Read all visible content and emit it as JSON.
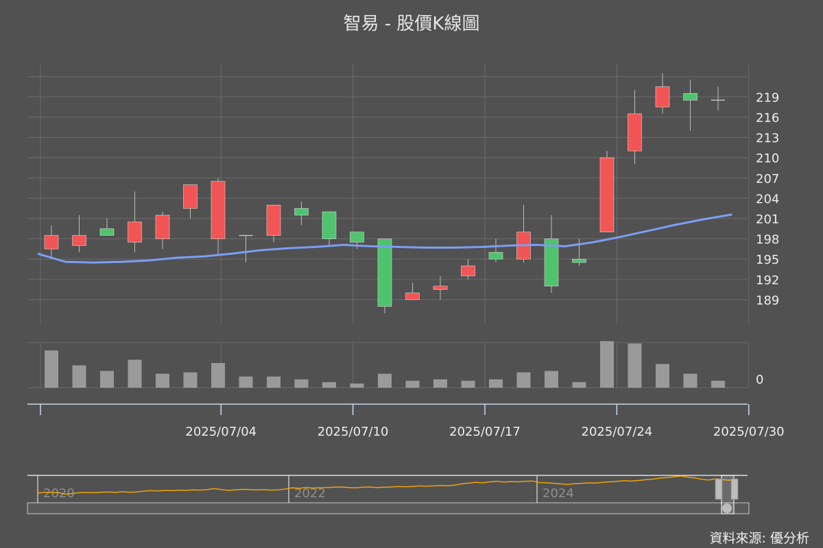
{
  "chart_data": {
    "type": "candlestick",
    "title": "智易 - 股價K線圖",
    "source": "資料來源: 優分析",
    "colors": {
      "background": "#515151",
      "up": "#f25555",
      "down": "#4fc36e",
      "ma": "#7b9ff5",
      "volume": "#9a9a9a",
      "navigator": "#f0a30a"
    },
    "price_axis": {
      "ticks": [
        189,
        192,
        195,
        198,
        201,
        204,
        207,
        210,
        213,
        216,
        219
      ]
    },
    "volume_axis": {
      "ticks": [
        0
      ]
    },
    "x_ticks": [
      {
        "index": 0,
        "label": ""
      },
      {
        "index": 6.5,
        "label": "2025/07/04"
      },
      {
        "index": 11.25,
        "label": "2025/07/10"
      },
      {
        "index": 16,
        "label": "2025/07/17"
      },
      {
        "index": 20.75,
        "label": "2025/07/24"
      },
      {
        "index": 25.5,
        "label": "2025/07/30"
      }
    ],
    "candles": [
      {
        "open": 196.5,
        "close": 198.5,
        "high": 200.0,
        "low": 195.0
      },
      {
        "open": 197.0,
        "close": 198.5,
        "high": 201.5,
        "low": 196.0
      },
      {
        "open": 199.5,
        "close": 198.5,
        "high": 201.0,
        "low": 198.5
      },
      {
        "open": 197.5,
        "close": 200.5,
        "high": 205.0,
        "low": 196.0
      },
      {
        "open": 198.0,
        "close": 201.5,
        "high": 202.0,
        "low": 196.5
      },
      {
        "open": 202.5,
        "close": 206.0,
        "high": 206.0,
        "low": 201.0
      },
      {
        "open": 198.0,
        "close": 206.5,
        "high": 207.0,
        "low": 195.5
      },
      {
        "open": 198.5,
        "close": 198.5,
        "high": 198.5,
        "low": 194.5
      },
      {
        "open": 198.5,
        "close": 203.0,
        "high": 203.0,
        "low": 197.5
      },
      {
        "open": 202.5,
        "close": 201.5,
        "high": 203.5,
        "low": 200.0
      },
      {
        "open": 202.0,
        "close": 198.0,
        "high": 202.0,
        "low": 197.0
      },
      {
        "open": 199.0,
        "close": 197.5,
        "high": 199.0,
        "low": 196.5
      },
      {
        "open": 198.0,
        "close": 188.0,
        "high": 198.0,
        "low": 187.0
      },
      {
        "open": 189.0,
        "close": 190.0,
        "high": 191.5,
        "low": 189.0
      },
      {
        "open": 190.5,
        "close": 191.0,
        "high": 192.5,
        "low": 189.0
      },
      {
        "open": 192.5,
        "close": 194.0,
        "high": 195.0,
        "low": 192.0
      },
      {
        "open": 196.0,
        "close": 195.0,
        "high": 198.0,
        "low": 194.5
      },
      {
        "open": 195.0,
        "close": 199.0,
        "high": 203.0,
        "low": 194.5
      },
      {
        "open": 198.0,
        "close": 191.0,
        "high": 201.5,
        "low": 190.0
      },
      {
        "open": 195.0,
        "close": 194.5,
        "high": 198.0,
        "low": 194.0
      },
      {
        "open": 199.0,
        "close": 210.0,
        "high": 211.0,
        "low": 199.0
      },
      {
        "open": 211.0,
        "close": 216.5,
        "high": 220.0,
        "low": 209.0
      },
      {
        "open": 217.5,
        "close": 220.5,
        "high": 222.5,
        "low": 216.5
      },
      {
        "open": 219.5,
        "close": 218.5,
        "high": 221.5,
        "low": 214.0
      },
      {
        "open": 218.5,
        "close": 218.5,
        "high": 220.5,
        "low": 217.0
      }
    ],
    "ma": [
      195.8,
      194.6,
      194.5,
      194.6,
      194.8,
      195.2,
      195.4,
      195.8,
      196.3,
      196.6,
      196.8,
      197.1,
      196.9,
      196.8,
      196.7,
      196.7,
      196.8,
      197.0,
      197.1,
      196.9,
      197.5,
      198.3,
      199.2,
      200.1,
      200.9,
      201.6
    ],
    "ma_x_start": -0.5,
    "volume": [
      0.8,
      0.48,
      0.36,
      0.6,
      0.3,
      0.33,
      0.53,
      0.24,
      0.24,
      0.18,
      0.12,
      0.09,
      0.3,
      0.15,
      0.18,
      0.15,
      0.18,
      0.33,
      0.36,
      0.12,
      1.0,
      0.95,
      0.51,
      0.3,
      0.15
    ],
    "navigator": {
      "year_labels": [
        "2020",
        "2022",
        "2024"
      ],
      "series": [
        0.35,
        0.38,
        0.37,
        0.36,
        0.3,
        0.34,
        0.36,
        0.37,
        0.36,
        0.38,
        0.39,
        0.37,
        0.4,
        0.38,
        0.39,
        0.42,
        0.44,
        0.43,
        0.45,
        0.44,
        0.46,
        0.45,
        0.47,
        0.46,
        0.48,
        0.52,
        0.48,
        0.45,
        0.47,
        0.49,
        0.48,
        0.47,
        0.48,
        0.46,
        0.47,
        0.5,
        0.55,
        0.53,
        0.56,
        0.54,
        0.55,
        0.56,
        0.57,
        0.58,
        0.56,
        0.55,
        0.57,
        0.58,
        0.56,
        0.57,
        0.58,
        0.6,
        0.59,
        0.6,
        0.62,
        0.61,
        0.62,
        0.64,
        0.63,
        0.65,
        0.7,
        0.73,
        0.76,
        0.74,
        0.78,
        0.8,
        0.77,
        0.79,
        0.78,
        0.8,
        0.81,
        0.75,
        0.74,
        0.72,
        0.7,
        0.68,
        0.71,
        0.72,
        0.74,
        0.73,
        0.76,
        0.78,
        0.8,
        0.82,
        0.81,
        0.83,
        0.86,
        0.88,
        0.92,
        0.94,
        0.97,
        1.0,
        0.96,
        0.93,
        0.88,
        0.85,
        0.9,
        0.86,
        0.84,
        0.87
      ]
    }
  }
}
